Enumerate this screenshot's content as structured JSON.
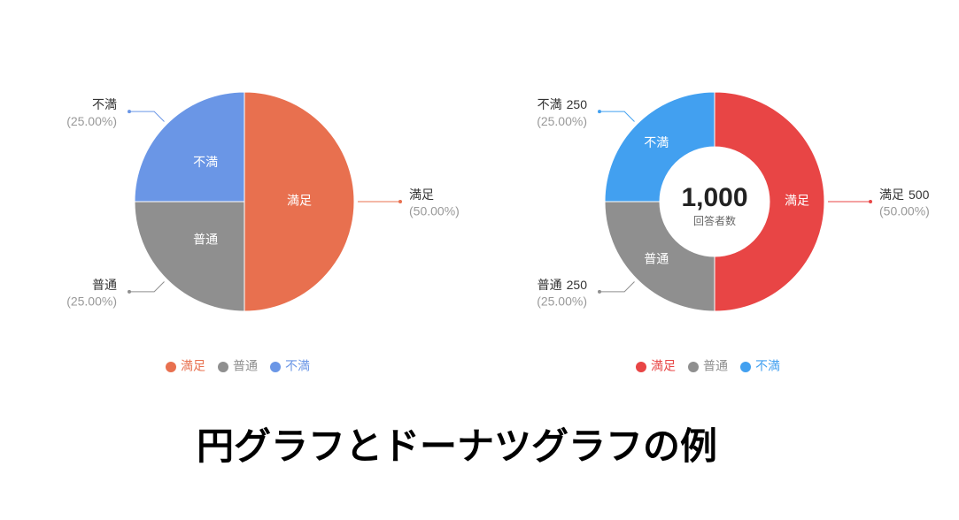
{
  "title": "円グラフとドーナツグラフの例",
  "chart_data": [
    {
      "type": "pie",
      "categories": [
        "満足",
        "普通",
        "不満"
      ],
      "values": [
        50,
        25,
        25
      ],
      "value_labels": [
        "(50.00%)",
        "(25.00%)",
        "(25.00%)"
      ],
      "colors": [
        "#e8704f",
        "#8f8f8f",
        "#6a96e6"
      ],
      "legend": "bottom"
    },
    {
      "type": "donut",
      "categories": [
        "満足",
        "普通",
        "不満"
      ],
      "values": [
        500,
        250,
        250
      ],
      "percent_labels": [
        "(50.00%)",
        "(25.00%)",
        "(25.00%)"
      ],
      "colors": [
        "#e84545",
        "#8f8f8f",
        "#42a0f0"
      ],
      "total": {
        "value": 1000,
        "label": "1,000"
      },
      "total_caption": "回答者数",
      "legend": "bottom"
    }
  ]
}
